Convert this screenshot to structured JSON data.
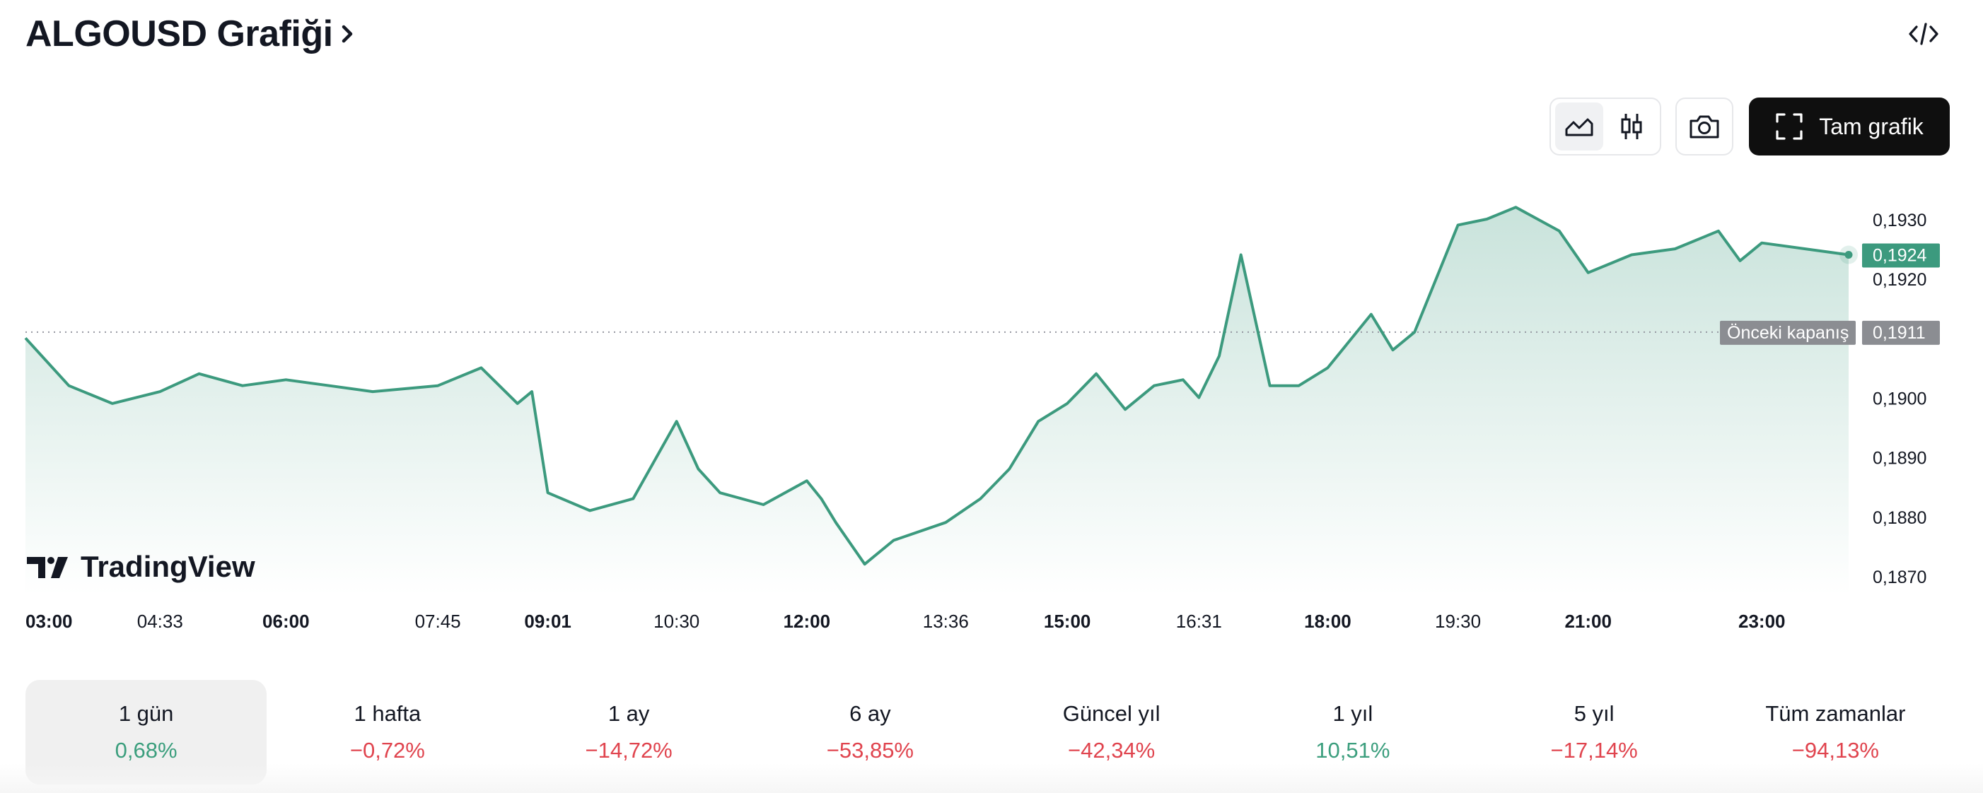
{
  "header": {
    "title": "ALGOUSD Grafiği"
  },
  "toolbar": {
    "full_chart_label": "Tam grafik",
    "icons": [
      "area-chart-icon",
      "candlestick-icon",
      "camera-icon",
      "fullscreen-icon",
      "embed-code-icon"
    ]
  },
  "watermark": {
    "text": "TradingView"
  },
  "chart_data": {
    "type": "area",
    "symbol": "ALGOUSD",
    "x_ticks": [
      {
        "label": "03:00",
        "bold": true
      },
      {
        "label": "04:33",
        "bold": false
      },
      {
        "label": "06:00",
        "bold": true
      },
      {
        "label": "07:45",
        "bold": false
      },
      {
        "label": "09:01",
        "bold": true
      },
      {
        "label": "10:30",
        "bold": false
      },
      {
        "label": "12:00",
        "bold": true
      },
      {
        "label": "13:36",
        "bold": false
      },
      {
        "label": "15:00",
        "bold": true
      },
      {
        "label": "16:31",
        "bold": false
      },
      {
        "label": "18:00",
        "bold": true
      },
      {
        "label": "19:30",
        "bold": false
      },
      {
        "label": "21:00",
        "bold": true
      },
      {
        "label": "23:00",
        "bold": true
      }
    ],
    "y_ticks": [
      "0,1930",
      "0,1920",
      "0,1900",
      "0,1890",
      "0,1880",
      "0,1870"
    ],
    "ylim": [
      0.1868,
      0.1934
    ],
    "previous_close": {
      "value": 0.1911,
      "label": "Önceki kapanış",
      "value_label": "0,1911"
    },
    "last_price": {
      "value": 0.1924,
      "value_label": "0,1924"
    },
    "series": [
      {
        "x": [
          "03:00",
          "03:30",
          "04:00",
          "04:33",
          "05:00",
          "05:30",
          "06:00",
          "06:30",
          "07:00",
          "07:45",
          "08:15",
          "08:40",
          "08:50",
          "09:01",
          "09:30",
          "10:00",
          "10:30",
          "10:45",
          "11:00",
          "11:30",
          "12:00",
          "12:10",
          "12:20",
          "12:40",
          "13:00",
          "13:36",
          "14:00",
          "14:20",
          "14:40",
          "15:00",
          "15:20",
          "15:40",
          "16:00",
          "16:20",
          "16:31",
          "16:45",
          "17:00",
          "17:20",
          "17:40",
          "18:00",
          "18:30",
          "18:45",
          "19:00",
          "19:30",
          "19:50",
          "20:10",
          "20:40",
          "21:00",
          "21:30",
          "22:00",
          "22:30",
          "22:45",
          "23:00",
          "23:30",
          "24:00"
        ],
        "values": [
          0.191,
          0.1902,
          0.1899,
          0.1901,
          0.1904,
          0.1902,
          0.1903,
          0.1902,
          0.1901,
          0.1902,
          0.1905,
          0.1899,
          0.1901,
          0.1884,
          0.1881,
          0.1883,
          0.1896,
          0.1888,
          0.1884,
          0.1882,
          0.1886,
          0.1883,
          0.1879,
          0.1872,
          0.1876,
          0.1879,
          0.1883,
          0.1888,
          0.1896,
          0.1899,
          0.1904,
          0.1898,
          0.1902,
          0.1903,
          0.19,
          0.1907,
          0.1924,
          0.1902,
          0.1902,
          0.1905,
          0.1914,
          0.1908,
          0.1911,
          0.1929,
          0.193,
          0.1932,
          0.1928,
          0.1921,
          0.1924,
          0.1925,
          0.1928,
          0.1923,
          0.1926,
          0.1925,
          0.1924
        ],
        "color": "#3c9a7e"
      }
    ]
  },
  "ranges": [
    {
      "label": "1 gün",
      "value": "0,68%",
      "trend": "pos",
      "active": true
    },
    {
      "label": "1 hafta",
      "value": "−0,72%",
      "trend": "neg",
      "active": false
    },
    {
      "label": "1 ay",
      "value": "−14,72%",
      "trend": "neg",
      "active": false
    },
    {
      "label": "6 ay",
      "value": "−53,85%",
      "trend": "neg",
      "active": false
    },
    {
      "label": "Güncel yıl",
      "value": "−42,34%",
      "trend": "neg",
      "active": false
    },
    {
      "label": "1 yıl",
      "value": "10,51%",
      "trend": "pos",
      "active": false
    },
    {
      "label": "5 yıl",
      "value": "−17,14%",
      "trend": "neg",
      "active": false
    },
    {
      "label": "Tüm zamanlar",
      "value": "−94,13%",
      "trend": "neg",
      "active": false
    }
  ]
}
